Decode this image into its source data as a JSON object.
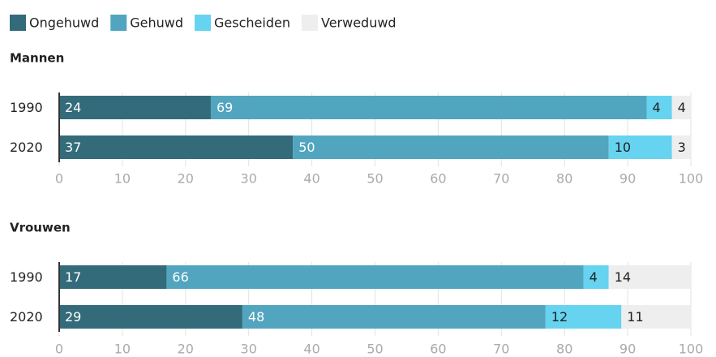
{
  "chart_data": [
    {
      "type": "stacked-bar",
      "title": "Mannen",
      "categories": [
        "1990",
        "2020"
      ],
      "series": [
        {
          "name": "Ongehuwd",
          "color": "#336b7a",
          "values": [
            24,
            37
          ]
        },
        {
          "name": "Gehuwd",
          "color": "#52a5bf",
          "values": [
            69,
            50
          ]
        },
        {
          "name": "Gescheiden",
          "color": "#66d3f0",
          "values": [
            4,
            10
          ]
        },
        {
          "name": "Verweduwd",
          "color": "#eeeeee",
          "values": [
            4,
            3
          ]
        }
      ],
      "xlim": [
        0,
        100
      ],
      "xticks": [
        0,
        10,
        20,
        30,
        40,
        50,
        60,
        70,
        80,
        90,
        100
      ],
      "grid": true
    },
    {
      "type": "stacked-bar",
      "title": "Vrouwen",
      "categories": [
        "1990",
        "2020"
      ],
      "series": [
        {
          "values": [
            17,
            29
          ]
        },
        {
          "values": [
            66,
            48
          ]
        },
        {
          "values": [
            4,
            12
          ]
        },
        {
          "values": [
            14,
            11
          ]
        }
      ],
      "xlim": [
        0,
        100
      ],
      "xticks": [
        0,
        10,
        20,
        30,
        40,
        50,
        60,
        70,
        80,
        90,
        100
      ],
      "grid": true
    }
  ]
}
